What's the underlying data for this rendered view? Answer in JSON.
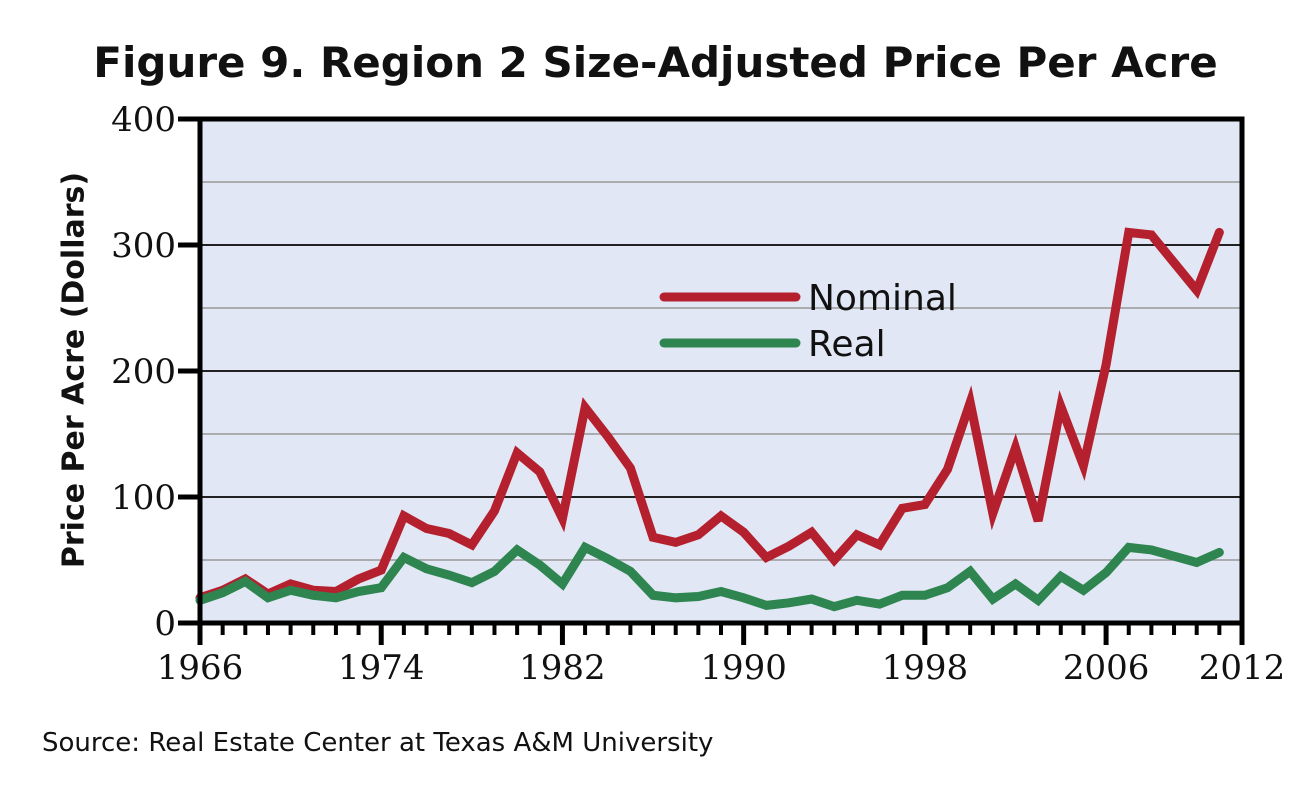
{
  "chart_data": {
    "type": "line",
    "title": "Figure 9. Region 2 Size-Adjusted Price Per Acre",
    "xlabel": "",
    "ylabel": "Price Per Acre (Dollars)",
    "xlim": [
      1966,
      2012
    ],
    "ylim": [
      0,
      400
    ],
    "x_ticks": [
      1966,
      1974,
      1982,
      1990,
      1998,
      2006,
      2012
    ],
    "y_ticks": [
      0,
      100,
      200,
      300,
      400
    ],
    "grid": true,
    "legend_position": "center-right",
    "x": [
      1966,
      1967,
      1968,
      1969,
      1970,
      1971,
      1972,
      1973,
      1974,
      1975,
      1976,
      1977,
      1978,
      1979,
      1980,
      1981,
      1982,
      1983,
      1984,
      1985,
      1986,
      1987,
      1988,
      1989,
      1990,
      1991,
      1992,
      1993,
      1994,
      1995,
      1996,
      1997,
      1998,
      1999,
      2000,
      2001,
      2002,
      2003,
      2004,
      2005,
      2006,
      2007,
      2008,
      2009,
      2010,
      2011
    ],
    "series": [
      {
        "name": "Nominal",
        "color": "#b5202e",
        "values": [
          20,
          26,
          35,
          23,
          31,
          26,
          25,
          35,
          42,
          85,
          75,
          71,
          62,
          89,
          135,
          120,
          83,
          171,
          148,
          123,
          68,
          64,
          70,
          85,
          72,
          52,
          61,
          72,
          50,
          70,
          62,
          91,
          94,
          122,
          175,
          87,
          139,
          81,
          172,
          125,
          205,
          310,
          308,
          286,
          264,
          310
        ]
      },
      {
        "name": "Real",
        "color": "#2e8550",
        "values": [
          18,
          24,
          33,
          20,
          26,
          22,
          20,
          25,
          28,
          52,
          43,
          38,
          32,
          41,
          58,
          46,
          31,
          60,
          51,
          41,
          22,
          20,
          21,
          25,
          20,
          14,
          16,
          19,
          13,
          18,
          15,
          22,
          22,
          28,
          41,
          19,
          31,
          18,
          37,
          26,
          40,
          60,
          58,
          53,
          48,
          56
        ]
      }
    ]
  },
  "source": "Source: Real Estate Center at Texas A&M University"
}
